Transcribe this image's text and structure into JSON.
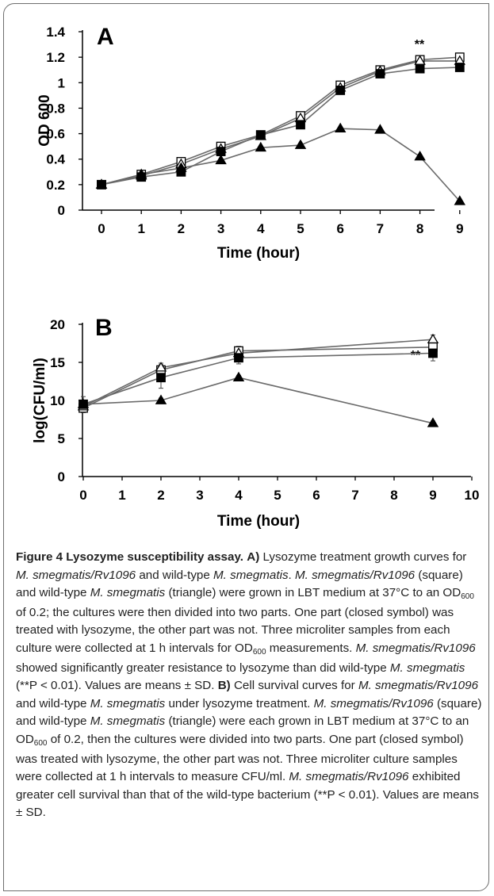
{
  "chart_data": [
    {
      "panel": "A",
      "type": "line",
      "xlabel": "Time (hour)",
      "ylabel": "OD 600",
      "xlim": [
        0,
        9.5
      ],
      "ylim": [
        0,
        1.4
      ],
      "xticks": [
        "0",
        "1",
        "2",
        "3",
        "4",
        "5",
        "6",
        "7",
        "8",
        "9"
      ],
      "yticks": [
        "0",
        "0.2",
        "0.4",
        "0.6",
        "0.8",
        "1",
        "1.2",
        "1.4"
      ],
      "annotation": "**",
      "series": [
        {
          "marker": "open-square",
          "x": [
            0,
            1,
            2,
            3,
            4,
            5,
            6,
            7,
            8,
            9
          ],
          "y": [
            0.2,
            0.28,
            0.38,
            0.5,
            0.59,
            0.74,
            0.98,
            1.1,
            1.18,
            1.2
          ]
        },
        {
          "marker": "open-triangle",
          "x": [
            0,
            1,
            2,
            3,
            4,
            5,
            6,
            7,
            8,
            9
          ],
          "y": [
            0.2,
            0.27,
            0.36,
            0.48,
            0.58,
            0.72,
            0.96,
            1.09,
            1.17,
            1.17
          ]
        },
        {
          "marker": "filled-square",
          "x": [
            0,
            1,
            2,
            3,
            4,
            5,
            6,
            7,
            8,
            9
          ],
          "y": [
            0.2,
            0.26,
            0.3,
            0.46,
            0.59,
            0.67,
            0.94,
            1.07,
            1.11,
            1.12
          ]
        },
        {
          "marker": "filled-triangle",
          "x": [
            0,
            1,
            2,
            3,
            4,
            5,
            6,
            7,
            8,
            9
          ],
          "y": [
            0.2,
            0.28,
            0.33,
            0.39,
            0.49,
            0.51,
            0.64,
            0.63,
            0.42,
            0.07
          ]
        }
      ]
    },
    {
      "panel": "B",
      "type": "line",
      "xlabel": "Time (hour)",
      "ylabel": "log(CFU/ml)",
      "xlim": [
        0,
        10
      ],
      "ylim": [
        0,
        20
      ],
      "xticks": [
        "0",
        "1",
        "2",
        "3",
        "4",
        "5",
        "6",
        "7",
        "8",
        "9",
        "10"
      ],
      "yticks": [
        "0",
        "5",
        "10",
        "15",
        "20"
      ],
      "annotation": "**",
      "series": [
        {
          "marker": "open-square",
          "x": [
            0,
            2,
            4,
            9
          ],
          "y": [
            9.0,
            14.0,
            16.5,
            17.0
          ],
          "err": [
            0.6,
            0.7,
            0.6,
            0.7
          ]
        },
        {
          "marker": "open-triangle",
          "x": [
            0,
            2,
            4,
            9
          ],
          "y": [
            9.2,
            14.3,
            16.2,
            18.0
          ],
          "err": [
            0.6,
            0.6,
            0.6,
            0.6
          ]
        },
        {
          "marker": "filled-square",
          "x": [
            0,
            2,
            4,
            9
          ],
          "y": [
            9.5,
            13.0,
            15.6,
            16.2
          ],
          "err": [
            1.0,
            1.4,
            0.8,
            1.0
          ]
        },
        {
          "marker": "filled-triangle",
          "x": [
            0,
            2,
            4,
            9
          ],
          "y": [
            9.5,
            10.0,
            13.0,
            7.0
          ],
          "err": [
            0.4,
            0.3,
            0.3,
            0.3
          ]
        }
      ]
    }
  ],
  "caption": {
    "title": "Figure 4 Lysozyme susceptibility assay.",
    "a_label": "A)",
    "b_label": "B)"
  }
}
